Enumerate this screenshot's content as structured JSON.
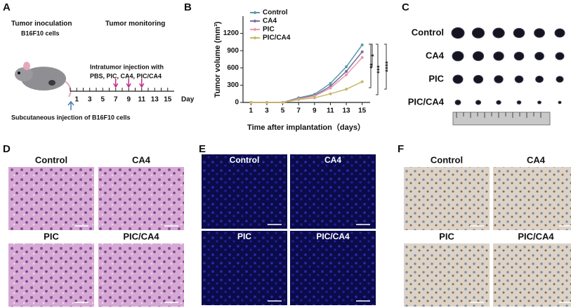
{
  "panel_a": {
    "label": "A",
    "inoculation": "Tumor inoculation",
    "cells": "B16F10 cells",
    "monitoring": "Tumor monitoring",
    "injection_title": "Intratumor injection with",
    "injection_groups": "PBS, PIC, CA4, PIC/CA4",
    "days": [
      "1",
      "3",
      "5",
      "7",
      "9",
      "11",
      "13",
      "15"
    ],
    "day_unit": "Day",
    "subcutaneous": "Subcutaneous injection of B16F10 cells"
  },
  "chart_data": {
    "type": "line",
    "panel_label": "B",
    "x": [
      1,
      3,
      5,
      7,
      9,
      11,
      13,
      15
    ],
    "xlim": [
      0,
      16
    ],
    "xticks": [
      1,
      3,
      5,
      7,
      9,
      11,
      13,
      15
    ],
    "ylim": [
      0,
      1500
    ],
    "yticks": [
      0,
      300,
      600,
      900,
      1200
    ],
    "xlabel": "Time after implantation（days）",
    "ylabel": "Tumor volume (mm³)",
    "series": [
      {
        "name": "Control",
        "color": "#5a9aa8",
        "values": [
          0,
          0,
          0,
          80,
          140,
          330,
          620,
          1000
        ]
      },
      {
        "name": "CA4",
        "color": "#7a6fa0",
        "values": [
          0,
          0,
          0,
          70,
          120,
          280,
          540,
          880
        ]
      },
      {
        "name": "PIC",
        "color": "#e89aa8",
        "values": [
          0,
          0,
          0,
          60,
          110,
          250,
          480,
          780
        ]
      },
      {
        "name": "PIC/CA4",
        "color": "#c8b86a",
        "values": [
          0,
          0,
          0,
          50,
          80,
          150,
          230,
          360
        ]
      }
    ],
    "annotations": [
      "*",
      "**",
      "***",
      "****"
    ]
  },
  "panel_c": {
    "label": "C",
    "groups": [
      "Control",
      "CA4",
      "PIC",
      "PIC/CA4"
    ]
  },
  "panel_d": {
    "label": "D",
    "groups": [
      "Control",
      "CA4",
      "PIC",
      "PIC/CA4"
    ]
  },
  "panel_e": {
    "label": "E",
    "groups": [
      "Control",
      "CA4",
      "PIC",
      "PIC/CA4"
    ]
  },
  "panel_f": {
    "label": "F",
    "groups": [
      "Control",
      "CA4",
      "PIC",
      "PIC/CA4"
    ]
  }
}
